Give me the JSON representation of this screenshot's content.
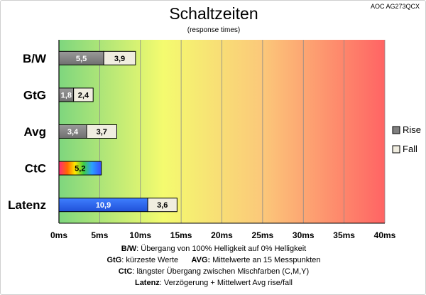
{
  "header": {
    "title": "Schaltzeiten",
    "subtitle": "(response times)",
    "model": "AOC AG273QCX"
  },
  "legend": [
    {
      "name": "Rise",
      "color": "#808080"
    },
    {
      "name": "Fall",
      "color": "#f0ede0"
    }
  ],
  "notes": [
    {
      "key": "B/W",
      "text": ":  Übergang von 100% Helligkeit auf 0% Helligkeit"
    },
    {
      "key": "GtG",
      "text": ": kürzeste  Werte",
      "key2": "AVG:",
      "text2": " Mittelwerte  an 15 Messpunkten"
    },
    {
      "key": "CtC",
      "text": ": längster Übergang  zwischen Mischfarben  (C,M,Y)"
    },
    {
      "key": "Latenz",
      "text": ": Verzögerung  + Mittelwert Avg rise/fall"
    }
  ],
  "chart_data": {
    "type": "bar",
    "orientation": "horizontal",
    "stacked": true,
    "title": "Schaltzeiten",
    "subtitle": "(response times)",
    "categories": [
      "B/W",
      "GtG",
      "Avg",
      "CtC",
      "Latenz"
    ],
    "series": [
      {
        "name": "Rise",
        "values": [
          5.5,
          1.8,
          3.4,
          5.2,
          10.9
        ]
      },
      {
        "name": "Fall",
        "values": [
          3.9,
          2.4,
          3.7,
          null,
          3.6
        ]
      }
    ],
    "labels": {
      "rise": [
        "5,5",
        "1,8",
        "3,4",
        "5,2",
        "10,9"
      ],
      "fall": [
        "3,9",
        "2,4",
        "3,7",
        "",
        "3,6"
      ]
    },
    "bar_styles": {
      "CtC": "rainbow",
      "Latenz": "blue"
    },
    "xlim": [
      0,
      40
    ],
    "xticks": [
      "0ms",
      "5ms",
      "10ms",
      "15ms",
      "20ms",
      "25ms",
      "30ms",
      "35ms",
      "40ms"
    ],
    "grid": true,
    "legend_position": "right",
    "background_gradient": [
      "#7ed67e",
      "#f4fb6f",
      "#ff6464"
    ]
  }
}
